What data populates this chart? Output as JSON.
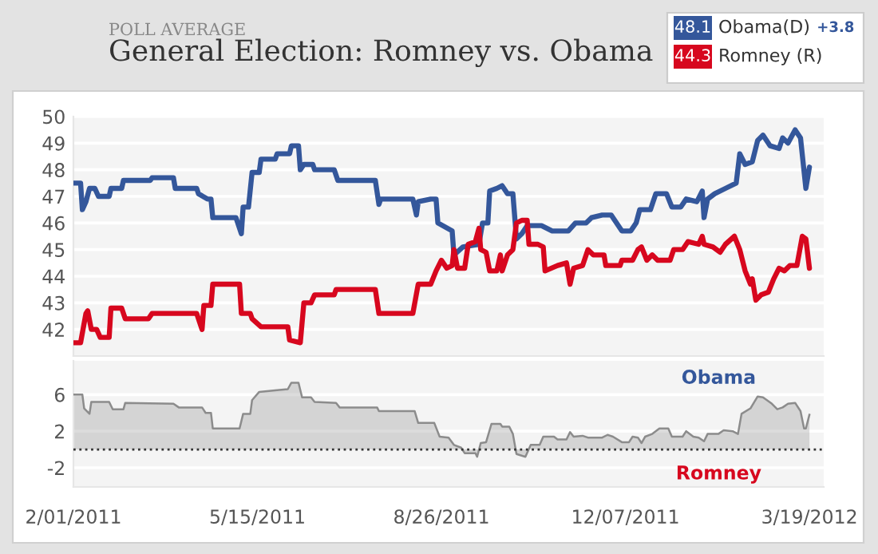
{
  "chart_data": [
    {
      "type": "line",
      "subtitle": "POLL AVERAGE",
      "title": "General Election: Romney vs. Obama",
      "annotations": [
        "48.1",
        "44.3",
        "+3.8"
      ],
      "legend": "top right",
      "grid": "y",
      "tick_labels": "y",
      "xlim": [
        "2011-02-01",
        "2012-03-27"
      ],
      "ylim": [
        41,
        50
      ],
      "yticks": [
        42,
        43,
        44,
        45,
        46,
        47,
        48,
        49,
        50
      ],
      "series": [
        {
          "name": "Obama(D)",
          "color": "#34579b",
          "x": [
            "2011-02-01",
            "2011-02-05",
            "2011-02-06",
            "2011-02-08",
            "2011-02-10",
            "2011-02-13",
            "2011-02-15",
            "2011-02-21",
            "2011-02-22",
            "2011-02-28",
            "2011-03-01",
            "2011-03-16",
            "2011-03-17",
            "2011-03-29",
            "2011-03-30",
            "2011-04-11",
            "2011-04-12",
            "2011-04-17",
            "2011-04-19",
            "2011-04-20",
            "2011-05-03",
            "2011-05-06",
            "2011-05-07",
            "2011-05-10",
            "2011-05-12",
            "2011-05-16",
            "2011-05-17",
            "2011-05-25",
            "2011-05-26",
            "2011-06-02",
            "2011-06-03",
            "2011-06-07",
            "2011-06-08",
            "2011-06-10",
            "2011-06-15",
            "2011-06-16",
            "2011-06-27",
            "2011-06-29",
            "2011-07-20",
            "2011-07-22",
            "2011-07-23",
            "2011-08-10",
            "2011-08-12",
            "2011-08-13",
            "2011-08-20",
            "2011-08-23",
            "2011-08-24",
            "2011-09-01",
            "2011-09-02",
            "2011-09-07",
            "2011-09-16",
            "2011-09-18",
            "2011-09-21",
            "2011-09-22",
            "2011-09-26",
            "2011-09-29",
            "2011-10-02",
            "2011-10-05",
            "2011-10-07",
            "2011-10-10",
            "2011-10-13",
            "2011-10-21",
            "2011-10-27",
            "2011-11-05",
            "2011-11-09",
            "2011-11-15",
            "2011-11-18",
            "2011-11-24",
            "2011-11-29",
            "2011-12-02",
            "2011-12-05",
            "2011-12-10",
            "2011-12-13",
            "2011-12-15",
            "2011-12-21",
            "2011-12-24",
            "2011-12-30",
            "2012-01-02",
            "2012-01-07",
            "2012-01-10",
            "2012-01-16",
            "2012-01-19",
            "2012-01-20",
            "2012-01-22",
            "2012-01-26",
            "2012-02-01",
            "2012-02-07",
            "2012-02-09",
            "2012-02-12",
            "2012-02-16",
            "2012-02-19",
            "2012-02-22",
            "2012-02-26",
            "2012-03-02",
            "2012-03-04",
            "2012-03-07",
            "2012-03-11",
            "2012-03-14",
            "2012-03-17",
            "2012-03-19"
          ],
          "values": [
            47.5,
            47.5,
            46.5,
            46.8,
            47.3,
            47.3,
            47.0,
            47.0,
            47.3,
            47.3,
            47.6,
            47.6,
            47.7,
            47.7,
            47.3,
            47.3,
            47.1,
            46.9,
            46.9,
            46.2,
            46.2,
            45.6,
            46.6,
            46.6,
            47.9,
            47.9,
            48.4,
            48.4,
            48.6,
            48.6,
            48.9,
            48.9,
            48.0,
            48.2,
            48.2,
            48.0,
            48.0,
            47.6,
            47.6,
            46.7,
            46.9,
            46.9,
            46.3,
            46.8,
            46.9,
            46.9,
            46.0,
            45.7,
            44.8,
            45.1,
            45.2,
            46.0,
            46.0,
            47.2,
            47.3,
            47.4,
            47.1,
            47.1,
            45.4,
            45.6,
            45.9,
            45.9,
            45.7,
            45.7,
            46.0,
            46.0,
            46.2,
            46.3,
            46.3,
            46.0,
            45.7,
            45.7,
            46.0,
            46.5,
            46.5,
            47.1,
            47.1,
            46.6,
            46.6,
            46.9,
            46.8,
            47.2,
            46.2,
            46.9,
            47.1,
            47.3,
            47.5,
            48.6,
            48.2,
            48.3,
            49.1,
            49.3,
            48.9,
            48.8,
            49.2,
            49.0,
            49.5,
            49.2,
            47.3,
            48.1
          ]
        },
        {
          "name": "Romney (R)",
          "color": "#d7071e",
          "x": [
            "2011-02-01",
            "2011-02-05",
            "2011-02-08",
            "2011-02-09",
            "2011-02-11",
            "2011-02-14",
            "2011-02-16",
            "2011-02-21",
            "2011-02-22",
            "2011-02-28",
            "2011-03-02",
            "2011-03-15",
            "2011-03-17",
            "2011-04-11",
            "2011-04-14",
            "2011-04-15",
            "2011-04-19",
            "2011-04-20",
            "2011-05-05",
            "2011-05-06",
            "2011-05-11",
            "2011-05-12",
            "2011-05-17",
            "2011-06-01",
            "2011-06-02",
            "2011-06-08",
            "2011-06-10",
            "2011-06-14",
            "2011-06-16",
            "2011-06-27",
            "2011-06-28",
            "2011-07-20",
            "2011-07-22",
            "2011-08-10",
            "2011-08-13",
            "2011-08-20",
            "2011-08-23",
            "2011-08-26",
            "2011-08-29",
            "2011-09-01",
            "2011-09-02",
            "2011-09-04",
            "2011-09-08",
            "2011-09-10",
            "2011-09-14",
            "2011-09-16",
            "2011-09-17",
            "2011-09-20",
            "2011-09-22",
            "2011-09-26",
            "2011-09-28",
            "2011-09-29",
            "2011-10-02",
            "2011-10-05",
            "2011-10-07",
            "2011-10-10",
            "2011-10-13",
            "2011-10-14",
            "2011-10-19",
            "2011-10-22",
            "2011-10-23",
            "2011-10-30",
            "2011-11-04",
            "2011-11-06",
            "2011-11-08",
            "2011-11-13",
            "2011-11-16",
            "2011-11-19",
            "2011-11-25",
            "2011-11-26",
            "2011-12-04",
            "2011-12-05",
            "2011-12-11",
            "2011-12-14",
            "2011-12-16",
            "2011-12-19",
            "2011-12-22",
            "2011-12-25",
            "2012-01-01",
            "2012-01-03",
            "2012-01-08",
            "2012-01-11",
            "2012-01-17",
            "2012-01-19",
            "2012-01-20",
            "2012-01-25",
            "2012-01-29",
            "2012-02-01",
            "2012-02-06",
            "2012-02-09",
            "2012-02-12",
            "2012-02-15",
            "2012-02-16",
            "2012-02-18",
            "2012-02-21",
            "2012-02-25",
            "2012-02-28",
            "2012-03-02",
            "2012-03-05",
            "2012-03-08",
            "2012-03-12",
            "2012-03-15",
            "2012-03-17",
            "2012-03-19"
          ],
          "values": [
            41.5,
            41.5,
            42.6,
            42.7,
            42.0,
            42.0,
            41.7,
            41.7,
            42.8,
            42.8,
            42.4,
            42.4,
            42.6,
            42.6,
            42.0,
            42.9,
            42.9,
            43.7,
            43.7,
            42.6,
            42.6,
            42.4,
            42.1,
            42.1,
            41.6,
            41.5,
            43.0,
            43.0,
            43.3,
            43.3,
            43.5,
            43.5,
            42.6,
            42.6,
            43.7,
            43.7,
            44.2,
            44.6,
            44.3,
            44.4,
            45.0,
            44.3,
            44.3,
            45.2,
            45.3,
            45.8,
            45.0,
            44.9,
            44.2,
            44.2,
            44.8,
            44.2,
            44.8,
            45.0,
            46.0,
            46.1,
            46.1,
            45.2,
            45.2,
            45.1,
            44.2,
            44.4,
            44.5,
            43.7,
            44.3,
            44.4,
            45.0,
            44.8,
            44.8,
            44.4,
            44.4,
            44.6,
            44.6,
            45.0,
            45.1,
            44.6,
            44.8,
            44.6,
            44.6,
            45.0,
            45.0,
            45.3,
            45.2,
            45.5,
            45.2,
            45.1,
            44.9,
            45.2,
            45.5,
            45.0,
            44.2,
            43.7,
            43.9,
            43.1,
            43.3,
            43.4,
            43.9,
            44.3,
            44.2,
            44.4,
            44.4,
            45.5,
            45.4,
            44.3
          ]
        }
      ]
    },
    {
      "type": "area",
      "annotations": [
        "Obama",
        "Romney"
      ],
      "grid": "y",
      "xlim": [
        "2011-02-01",
        "2012-03-27"
      ],
      "ylim": [
        -4.1,
        9.7
      ],
      "yticks": [
        -2,
        2,
        6
      ],
      "xticks": [
        {
          "value": "2011-02-01",
          "label": "2/01/2011"
        },
        {
          "value": "2011-05-15",
          "label": "5/15/2011"
        },
        {
          "value": "2011-08-26",
          "label": "8/26/2011"
        },
        {
          "value": "2011-12-07",
          "label": "12/07/2011"
        },
        {
          "value": "2012-03-19",
          "label": "3/19/2012"
        }
      ],
      "ref_lines": [
        {
          "axis": "y",
          "value": 0,
          "color": "#333333",
          "line_style": "dotted"
        }
      ],
      "series": [
        {
          "color": "#8c8c8c",
          "x": [
            "2011-02-01",
            "2011-02-06",
            "2011-02-07",
            "2011-02-10",
            "2011-02-11",
            "2011-02-21",
            "2011-02-23",
            "2011-03-01",
            "2011-03-02",
            "2011-03-29",
            "2011-04-01",
            "2011-04-14",
            "2011-04-16",
            "2011-04-19",
            "2011-04-20",
            "2011-05-05",
            "2011-05-07",
            "2011-05-11",
            "2011-05-12",
            "2011-05-16",
            "2011-05-26",
            "2011-06-01",
            "2011-06-03",
            "2011-06-07",
            "2011-06-09",
            "2011-06-14",
            "2011-06-16",
            "2011-06-28",
            "2011-06-30",
            "2011-07-21",
            "2011-07-22",
            "2011-08-11",
            "2011-08-13",
            "2011-08-22",
            "2011-08-25",
            "2011-08-30",
            "2011-09-02",
            "2011-09-06",
            "2011-09-08",
            "2011-09-14",
            "2011-09-15",
            "2011-09-17",
            "2011-09-20",
            "2011-09-23",
            "2011-09-28",
            "2011-09-29",
            "2011-10-03",
            "2011-10-05",
            "2011-10-07",
            "2011-10-12",
            "2011-10-15",
            "2011-10-20",
            "2011-10-22",
            "2011-10-28",
            "2011-10-30",
            "2011-11-04",
            "2011-11-06",
            "2011-11-08",
            "2011-11-13",
            "2011-11-16",
            "2011-11-24",
            "2011-11-27",
            "2011-11-30",
            "2011-12-05",
            "2011-12-09",
            "2011-12-11",
            "2011-12-14",
            "2011-12-16",
            "2011-12-18",
            "2011-12-22",
            "2011-12-26",
            "2011-12-31",
            "2012-01-02",
            "2012-01-08",
            "2012-01-10",
            "2012-01-14",
            "2012-01-17",
            "2012-01-20",
            "2012-01-22",
            "2012-01-28",
            "2012-01-31",
            "2012-02-05",
            "2012-02-08",
            "2012-02-10",
            "2012-02-15",
            "2012-02-19",
            "2012-02-22",
            "2012-02-27",
            "2012-03-01",
            "2012-03-04",
            "2012-03-07",
            "2012-03-11",
            "2012-03-14",
            "2012-03-16",
            "2012-03-17",
            "2012-03-19"
          ],
          "values": [
            6.0,
            6.0,
            4.5,
            3.9,
            5.2,
            5.2,
            4.4,
            4.4,
            5.1,
            5.0,
            4.6,
            4.6,
            4.0,
            4.0,
            2.3,
            2.3,
            3.9,
            3.9,
            5.4,
            6.3,
            6.5,
            6.6,
            7.3,
            7.3,
            5.7,
            5.7,
            5.2,
            5.1,
            4.6,
            4.6,
            4.2,
            4.2,
            2.9,
            2.9,
            1.4,
            1.3,
            0.5,
            0.2,
            -0.4,
            -0.4,
            -0.8,
            0.7,
            0.8,
            2.8,
            2.8,
            2.5,
            2.5,
            1.7,
            -0.5,
            -0.8,
            0.5,
            0.5,
            1.4,
            1.4,
            1.1,
            1.1,
            1.9,
            1.4,
            1.5,
            1.3,
            1.3,
            1.6,
            1.4,
            0.8,
            0.8,
            1.4,
            1.3,
            0.7,
            1.4,
            1.7,
            2.3,
            2.3,
            1.4,
            1.4,
            2.0,
            1.4,
            1.3,
            0.9,
            1.7,
            1.7,
            2.1,
            2.0,
            1.7,
            3.9,
            4.5,
            5.8,
            5.7,
            5.0,
            4.4,
            4.6,
            5.0,
            5.1,
            4.2,
            2.3,
            2.3,
            3.8
          ]
        }
      ]
    }
  ]
}
